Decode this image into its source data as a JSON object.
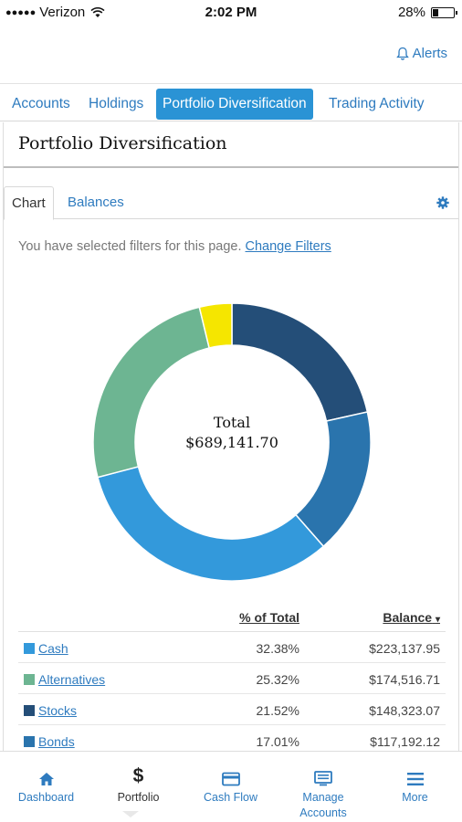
{
  "status": {
    "carrier": "Verizon",
    "time": "2:02 PM",
    "battery": "28%",
    "battery_level": 0.28
  },
  "header": {
    "alerts_label": "Alerts"
  },
  "tabs": [
    {
      "label": "Accounts"
    },
    {
      "label": "Holdings"
    },
    {
      "label": "Portfolio Diversification"
    },
    {
      "label": "Trading Activity"
    }
  ],
  "panel": {
    "title": "Portfolio Diversification",
    "subtabs": [
      "Chart",
      "Balances"
    ],
    "filter_text": "You have selected filters for this page.",
    "filter_link": "Change Filters"
  },
  "chart_data": {
    "type": "pie",
    "center_label": "Total",
    "center_value": "$689,141.70",
    "colors": {
      "Cash": "#3399db",
      "Alternatives": "#6db592",
      "Stocks": "#244e78",
      "Bonds": "#2a74ad",
      "Other": "#f5e600"
    },
    "slices": [
      {
        "name": "Stocks",
        "value": 21.52,
        "color": "#244e78"
      },
      {
        "name": "Bonds",
        "value": 17.01,
        "color": "#2a74ad"
      },
      {
        "name": "Cash",
        "value": 32.38,
        "color": "#3399db"
      },
      {
        "name": "Alternatives",
        "value": 25.32,
        "color": "#6db592"
      },
      {
        "name": "",
        "value": 3.77,
        "color": "#f5e600"
      }
    ]
  },
  "table": {
    "col_pct": "% of Total",
    "col_balance": "Balance",
    "rows": [
      {
        "name": "Cash",
        "pct": "32.38%",
        "balance": "$223,137.95",
        "color": "#3399db"
      },
      {
        "name": "Alternatives",
        "pct": "25.32%",
        "balance": "$174,516.71",
        "color": "#6db592"
      },
      {
        "name": "Stocks",
        "pct": "21.52%",
        "balance": "$148,323.07",
        "color": "#244e78"
      },
      {
        "name": "Bonds",
        "pct": "17.01%",
        "balance": "$117,192.12",
        "color": "#2a74ad"
      }
    ]
  },
  "bottom_nav": [
    {
      "label": "Dashboard",
      "icon": "home-icon"
    },
    {
      "label": "Portfolio",
      "icon": "dollar-icon"
    },
    {
      "label": "Cash Flow",
      "icon": "card-icon"
    },
    {
      "label": "Manage Accounts",
      "icon": "monitor-icon"
    },
    {
      "label": "More",
      "icon": "menu-icon"
    }
  ]
}
